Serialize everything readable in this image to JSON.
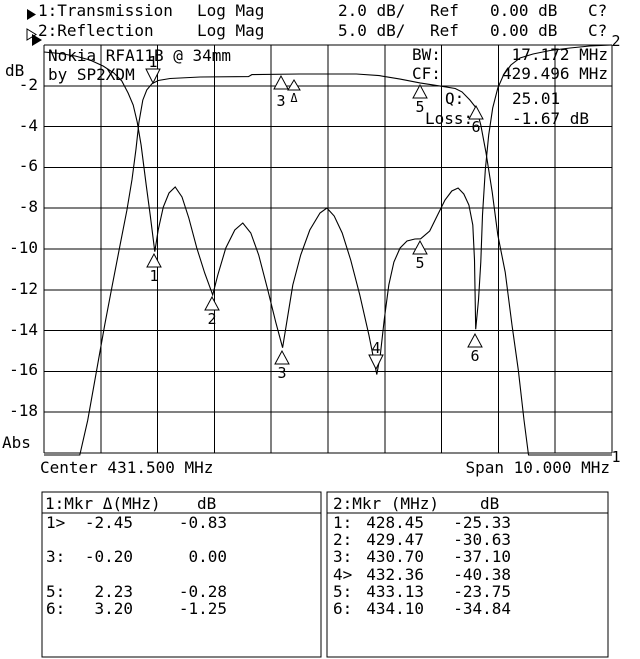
{
  "header": {
    "rows": [
      {
        "ch": "1:Transmission",
        "format": "Log Mag",
        "scale": "2.0 dB/",
        "ref_label": "Ref",
        "ref_value": "0.00 dB",
        "cal": "C?"
      },
      {
        "ch": "2:Reflection",
        "format": "Log Mag",
        "scale": "5.0 dB/",
        "ref_label": "Ref",
        "ref_value": "0.00 dB",
        "cal": "C?"
      }
    ]
  },
  "plot": {
    "title1": "Nokia RFA11B @ 34mm",
    "title2": "by SP2XDM",
    "stats": {
      "bw_label": "BW:",
      "bw_value": "17.172 MHz",
      "cf_label": "CF:",
      "cf_value": "429.496 MHz",
      "q_label": "Q:",
      "q_value": "25.01",
      "loss_label": "Loss:",
      "loss_value": "-1.67 dB"
    },
    "trace1_corner": "1",
    "trace2_corner": "2"
  },
  "axes": {
    "y_unit": "dB",
    "y_abs": "Abs",
    "y_ticks": [
      "-2",
      "-4",
      "-6",
      "-8",
      "-10",
      "-12",
      "-14",
      "-16",
      "-18"
    ],
    "x_center": "Center 431.500 MHz",
    "x_span": "Span 10.000 MHz"
  },
  "markers": {
    "t1_active": "1",
    "t1_a": "3",
    "t1_ref": "Δ",
    "t1_b": "5",
    "t1_c": "6",
    "r1": "1",
    "r2": "2",
    "r3": "3",
    "r4": "4",
    "r5": "5",
    "r6": "6"
  },
  "tables": {
    "left": {
      "title": "1:Mkr Δ(MHz)",
      "col2": "dB",
      "rows": [
        {
          "id": "1>",
          "f": "-2.45",
          "db": "-0.83"
        },
        {
          "id": "",
          "f": "",
          "db": ""
        },
        {
          "id": "3:",
          "f": "-0.20",
          "db": "0.00"
        },
        {
          "id": "",
          "f": "",
          "db": ""
        },
        {
          "id": "5:",
          "f": "2.23",
          "db": "-0.28"
        },
        {
          "id": "6:",
          "f": "3.20",
          "db": "-1.25"
        }
      ]
    },
    "right": {
      "title": "2:Mkr (MHz)",
      "col2": "dB",
      "rows": [
        {
          "id": "1:",
          "f": "428.45",
          "db": "-25.33"
        },
        {
          "id": "2:",
          "f": "429.47",
          "db": "-30.63"
        },
        {
          "id": "3:",
          "f": "430.70",
          "db": "-37.10"
        },
        {
          "id": "4>",
          "f": "432.36",
          "db": "-40.38"
        },
        {
          "id": "5:",
          "f": "433.13",
          "db": "-23.75"
        },
        {
          "id": "6:",
          "f": "434.10",
          "db": "-34.84"
        }
      ]
    }
  },
  "chart_data": {
    "type": "line",
    "title": "Nokia RFA11B @ 34mm by SP2XDM",
    "xlabel": "Frequency (MHz) — Center 431.500 MHz, Span 10.000 MHz",
    "ylabel": "dB",
    "x_range": [
      426.5,
      436.5
    ],
    "grid": true,
    "stats": {
      "BW_MHz": 17.172,
      "CF_MHz": 429.496,
      "Q": 25.01,
      "Loss_dB": -1.67
    },
    "series": [
      {
        "name": "1:Transmission",
        "format": "Log Mag",
        "scale_db_per_div": 2.0,
        "ref_db": 0.0,
        "points": [
          [
            426.5,
            -20.1
          ],
          [
            427.13,
            -20.1
          ],
          [
            427.27,
            -18.4
          ],
          [
            427.43,
            -15.9
          ],
          [
            427.57,
            -13.7
          ],
          [
            427.7,
            -11.8
          ],
          [
            427.84,
            -9.8
          ],
          [
            427.96,
            -8.1
          ],
          [
            428.05,
            -6.6
          ],
          [
            428.12,
            -5.1
          ],
          [
            428.17,
            -3.8
          ],
          [
            428.24,
            -2.7
          ],
          [
            428.31,
            -2.2
          ],
          [
            428.4,
            -1.9
          ],
          [
            428.51,
            -1.74
          ],
          [
            428.72,
            -1.64
          ],
          [
            429.25,
            -1.57
          ],
          [
            430.1,
            -1.55
          ],
          [
            430.16,
            -1.45
          ],
          [
            431.0,
            -1.42
          ],
          [
            432.0,
            -1.42
          ],
          [
            432.4,
            -1.5
          ],
          [
            432.77,
            -1.67
          ],
          [
            433.12,
            -1.86
          ],
          [
            433.52,
            -2.03
          ],
          [
            433.74,
            -2.13
          ],
          [
            433.86,
            -2.3
          ],
          [
            434.0,
            -2.7
          ],
          [
            434.11,
            -3.09
          ],
          [
            434.19,
            -3.92
          ],
          [
            434.28,
            -5.25
          ],
          [
            434.39,
            -7.21
          ],
          [
            434.49,
            -9.31
          ],
          [
            434.62,
            -11.13
          ],
          [
            434.74,
            -13.73
          ],
          [
            434.85,
            -15.93
          ],
          [
            434.95,
            -18.38
          ],
          [
            435.03,
            -20.1
          ],
          [
            436.5,
            -20.1
          ]
        ],
        "markers": [
          {
            "n": "1",
            "delta_MHz": -2.45,
            "delta_dB": -0.83
          },
          {
            "n": "3",
            "delta_MHz": -0.2,
            "delta_dB": 0.0
          },
          {
            "n": "5",
            "delta_MHz": 2.23,
            "delta_dB": -0.28
          },
          {
            "n": "6",
            "delta_MHz": 3.2,
            "delta_dB": -1.25
          }
        ]
      },
      {
        "name": "2:Reflection",
        "format": "Log Mag",
        "scale_db_per_div": 5.0,
        "ref_db": 0.0,
        "points": [
          [
            426.5,
            -0.86
          ],
          [
            426.78,
            -1.04
          ],
          [
            427.05,
            -1.35
          ],
          [
            427.31,
            -1.84
          ],
          [
            427.54,
            -2.57
          ],
          [
            427.73,
            -3.43
          ],
          [
            427.87,
            -4.41
          ],
          [
            427.98,
            -5.88
          ],
          [
            428.07,
            -7.35
          ],
          [
            428.14,
            -9.44
          ],
          [
            428.21,
            -12.25
          ],
          [
            428.3,
            -17.16
          ],
          [
            428.37,
            -20.83
          ],
          [
            428.45,
            -25.33
          ],
          [
            428.51,
            -22.67
          ],
          [
            428.6,
            -19.85
          ],
          [
            428.7,
            -18.14
          ],
          [
            428.81,
            -17.4
          ],
          [
            428.93,
            -18.63
          ],
          [
            429.05,
            -21.2
          ],
          [
            429.19,
            -24.88
          ],
          [
            429.33,
            -27.94
          ],
          [
            429.47,
            -30.63
          ],
          [
            429.56,
            -28.19
          ],
          [
            429.7,
            -24.88
          ],
          [
            429.86,
            -22.67
          ],
          [
            430.0,
            -21.81
          ],
          [
            430.14,
            -23.04
          ],
          [
            430.28,
            -25.74
          ],
          [
            430.44,
            -30.02
          ],
          [
            430.58,
            -33.95
          ],
          [
            430.7,
            -37.1
          ],
          [
            430.78,
            -33.7
          ],
          [
            430.88,
            -29.41
          ],
          [
            431.02,
            -25.74
          ],
          [
            431.18,
            -22.67
          ],
          [
            431.36,
            -20.59
          ],
          [
            431.48,
            -19.98
          ],
          [
            431.61,
            -20.96
          ],
          [
            431.75,
            -23.04
          ],
          [
            431.9,
            -26.35
          ],
          [
            432.06,
            -30.64
          ],
          [
            432.22,
            -35.54
          ],
          [
            432.36,
            -40.38
          ],
          [
            432.42,
            -37.99
          ],
          [
            432.49,
            -33.7
          ],
          [
            432.57,
            -29.41
          ],
          [
            432.66,
            -26.59
          ],
          [
            432.77,
            -24.88
          ],
          [
            432.89,
            -24.02
          ],
          [
            433.03,
            -23.77
          ],
          [
            433.13,
            -23.75
          ],
          [
            433.29,
            -22.79
          ],
          [
            433.42,
            -20.96
          ],
          [
            433.56,
            -19.0
          ],
          [
            433.68,
            -17.89
          ],
          [
            433.79,
            -17.52
          ],
          [
            433.89,
            -18.26
          ],
          [
            433.98,
            -19.61
          ],
          [
            434.05,
            -22.06
          ],
          [
            434.08,
            -26.35
          ],
          [
            434.1,
            -34.84
          ],
          [
            434.15,
            -31.25
          ],
          [
            434.19,
            -26.59
          ],
          [
            434.22,
            -20.83
          ],
          [
            434.27,
            -15.32
          ],
          [
            434.33,
            -11.03
          ],
          [
            434.4,
            -7.72
          ],
          [
            434.49,
            -5.27
          ],
          [
            434.59,
            -3.68
          ],
          [
            434.72,
            -2.45
          ],
          [
            434.88,
            -1.59
          ],
          [
            435.11,
            -1.1
          ],
          [
            435.41,
            -0.67
          ],
          [
            435.76,
            -0.37
          ],
          [
            436.11,
            -0.12
          ],
          [
            436.5,
            0.0
          ]
        ],
        "markers": [
          {
            "n": "1",
            "MHz": 428.45,
            "dB": -25.33
          },
          {
            "n": "2",
            "MHz": 429.47,
            "dB": -30.63
          },
          {
            "n": "3",
            "MHz": 430.7,
            "dB": -37.1
          },
          {
            "n": "4",
            "MHz": 432.36,
            "dB": -40.38,
            "active": true
          },
          {
            "n": "5",
            "MHz": 433.13,
            "dB": -23.75
          },
          {
            "n": "6",
            "MHz": 434.1,
            "dB": -34.84
          }
        ]
      }
    ]
  }
}
